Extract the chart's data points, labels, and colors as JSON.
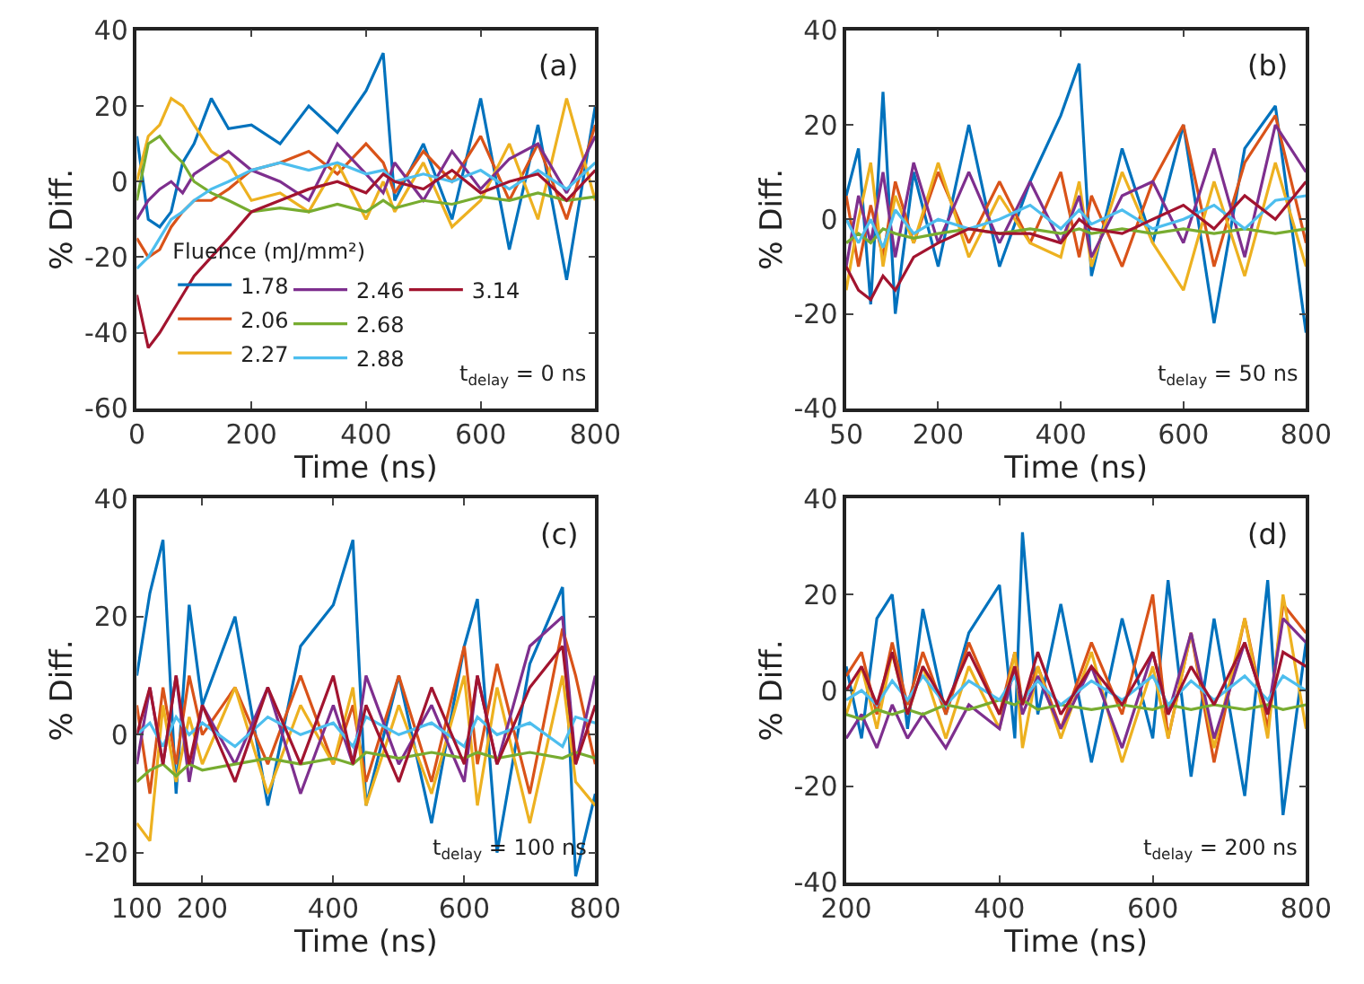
{
  "chart_data": [
    {
      "type": "line",
      "xlabel": "Time (ns)",
      "ylabel": "% Diff.",
      "xlim": [
        0,
        800
      ],
      "xticks": [
        0,
        200,
        400,
        600,
        800
      ],
      "ylim": [
        -60,
        40
      ],
      "yticks": [
        -60,
        -40,
        -20,
        0,
        20,
        40
      ],
      "legend": "bottom",
      "legend_title": "Fluence (mJ/mm²)",
      "annotations": [
        "(a)",
        "t$_{delay}$ = 0 ns"
      ],
      "x": [
        0,
        20,
        40,
        60,
        80,
        100,
        130,
        160,
        200,
        250,
        300,
        350,
        400,
        430,
        450,
        500,
        550,
        600,
        650,
        700,
        750,
        800
      ],
      "series": [
        {
          "name": "1.78",
          "color": "#0072bd",
          "values": [
            12,
            -10,
            -12,
            -8,
            5,
            10,
            22,
            14,
            15,
            10,
            20,
            13,
            24,
            34,
            -5,
            10,
            -10,
            22,
            -18,
            15,
            -26,
            20
          ]
        },
        {
          "name": "2.06",
          "color": "#d95319",
          "values": [
            -15,
            -20,
            -18,
            -12,
            -8,
            -5,
            -5,
            -2,
            3,
            5,
            8,
            2,
            10,
            5,
            -3,
            8,
            0,
            12,
            -5,
            10,
            -10,
            15
          ]
        },
        {
          "name": "2.27",
          "color": "#edb120",
          "values": [
            0,
            12,
            15,
            22,
            20,
            15,
            8,
            5,
            -5,
            -3,
            -8,
            5,
            -10,
            0,
            -8,
            5,
            -12,
            -5,
            10,
            -10,
            22,
            -5
          ]
        },
        {
          "name": "2.46",
          "color": "#7e2f8e",
          "values": [
            -10,
            -5,
            -2,
            0,
            -3,
            2,
            5,
            8,
            3,
            0,
            -5,
            10,
            2,
            -3,
            5,
            -5,
            8,
            -2,
            6,
            10,
            -3,
            12
          ]
        },
        {
          "name": "2.68",
          "color": "#77ac30",
          "values": [
            -5,
            10,
            12,
            8,
            5,
            0,
            -3,
            -5,
            -8,
            -7,
            -8,
            -6,
            -8,
            -5,
            -7,
            -5,
            -6,
            -4,
            -5,
            -3,
            -5,
            -4
          ]
        },
        {
          "name": "2.88",
          "color": "#4dbeee",
          "values": [
            -23,
            -20,
            -15,
            -10,
            -8,
            -5,
            -2,
            0,
            3,
            5,
            3,
            5,
            2,
            3,
            0,
            2,
            0,
            3,
            -2,
            3,
            -2,
            5
          ]
        },
        {
          "name": "3.14",
          "color": "#a2142f",
          "values": [
            -30,
            -44,
            -40,
            -35,
            -30,
            -25,
            -20,
            -15,
            -8,
            -5,
            -2,
            0,
            -3,
            2,
            0,
            -2,
            3,
            -3,
            0,
            2,
            -5,
            3
          ]
        }
      ]
    },
    {
      "type": "line",
      "xlabel": "Time (ns)",
      "ylabel": "% Diff.",
      "xlim": [
        50,
        800
      ],
      "xticks": [
        50,
        200,
        400,
        600,
        800
      ],
      "ylim": [
        -40,
        40
      ],
      "yticks": [
        -40,
        -20,
        0,
        20,
        40
      ],
      "annotations": [
        "(b)",
        "t$_{delay}$ = 50 ns"
      ],
      "x": [
        50,
        70,
        90,
        110,
        130,
        160,
        200,
        250,
        300,
        350,
        400,
        430,
        450,
        500,
        550,
        600,
        650,
        700,
        750,
        800
      ],
      "series": [
        {
          "color": "#0072bd",
          "values": [
            5,
            15,
            -18,
            27,
            -20,
            10,
            -10,
            20,
            -10,
            8,
            22,
            33,
            -12,
            15,
            -5,
            20,
            -22,
            15,
            24,
            -24
          ]
        },
        {
          "color": "#d95319",
          "values": [
            5,
            -10,
            3,
            -8,
            8,
            -5,
            10,
            -5,
            8,
            -5,
            10,
            -8,
            5,
            -10,
            8,
            20,
            -10,
            12,
            22,
            -5
          ]
        },
        {
          "color": "#edb120",
          "values": [
            -15,
            0,
            12,
            -10,
            5,
            -5,
            12,
            -8,
            5,
            -5,
            -8,
            8,
            -10,
            10,
            -5,
            -15,
            8,
            -12,
            12,
            -10
          ]
        },
        {
          "color": "#7e2f8e",
          "values": [
            -10,
            5,
            -5,
            10,
            -8,
            12,
            -5,
            10,
            -5,
            8,
            -5,
            5,
            -8,
            5,
            8,
            -5,
            15,
            -8,
            20,
            10
          ]
        },
        {
          "color": "#77ac30",
          "values": [
            -5,
            -3,
            -5,
            -2,
            -3,
            -4,
            -3,
            -2,
            -3,
            -2,
            -3,
            -2,
            -3,
            -2,
            -3,
            -2,
            -3,
            -2,
            -3,
            -2
          ]
        },
        {
          "color": "#4dbeee",
          "values": [
            0,
            -5,
            0,
            -6,
            2,
            -3,
            0,
            -2,
            0,
            3,
            -2,
            2,
            -1,
            2,
            -2,
            0,
            3,
            -2,
            4,
            5
          ]
        },
        {
          "color": "#a2142f",
          "values": [
            -10,
            -15,
            -17,
            -12,
            -15,
            -8,
            -5,
            -2,
            -3,
            -3,
            -5,
            0,
            -2,
            -3,
            0,
            3,
            -2,
            5,
            0,
            8
          ]
        }
      ]
    },
    {
      "type": "line",
      "xlabel": "Time (ns)",
      "ylabel": "% Diff.",
      "xlim": [
        100,
        800
      ],
      "xticks": [
        100,
        200,
        400,
        600,
        800
      ],
      "ylim": [
        -25,
        40
      ],
      "yticks": [
        -20,
        0,
        20,
        40
      ],
      "annotations": [
        "(c)",
        "t$_{delay}$ = 100 ns"
      ],
      "x": [
        100,
        120,
        140,
        160,
        180,
        200,
        250,
        300,
        350,
        400,
        430,
        450,
        500,
        550,
        600,
        620,
        650,
        700,
        750,
        770,
        800
      ],
      "series": [
        {
          "color": "#0072bd",
          "values": [
            10,
            24,
            33,
            -10,
            22,
            5,
            20,
            -12,
            15,
            22,
            33,
            -12,
            10,
            -15,
            15,
            23,
            -20,
            12,
            25,
            -24,
            -10
          ]
        },
        {
          "color": "#d95319",
          "values": [
            5,
            -10,
            8,
            -5,
            10,
            0,
            8,
            -5,
            10,
            -5,
            5,
            -8,
            10,
            -8,
            15,
            -5,
            12,
            -10,
            18,
            10,
            -5
          ]
        },
        {
          "color": "#edb120",
          "values": [
            -15,
            -18,
            5,
            -8,
            3,
            -5,
            8,
            -10,
            5,
            -5,
            8,
            -12,
            5,
            -10,
            10,
            -12,
            8,
            -15,
            10,
            -8,
            -12
          ]
        },
        {
          "color": "#7e2f8e",
          "values": [
            -5,
            8,
            -5,
            10,
            -8,
            5,
            -5,
            8,
            -10,
            5,
            -5,
            10,
            -5,
            5,
            -8,
            10,
            -5,
            15,
            20,
            -5,
            10
          ]
        },
        {
          "color": "#77ac30",
          "values": [
            -8,
            -6,
            -5,
            -7,
            -5,
            -6,
            -5,
            -4,
            -5,
            -4,
            -5,
            -3,
            -4,
            -3,
            -4,
            -3,
            -4,
            -3,
            -4,
            -3,
            -4
          ]
        },
        {
          "color": "#4dbeee",
          "values": [
            0,
            2,
            -2,
            3,
            0,
            2,
            -2,
            3,
            0,
            2,
            -2,
            3,
            0,
            2,
            -2,
            3,
            0,
            2,
            -2,
            3,
            2
          ]
        },
        {
          "color": "#a2142f",
          "values": [
            0,
            8,
            -5,
            10,
            -5,
            5,
            -8,
            8,
            -5,
            10,
            -5,
            5,
            -8,
            8,
            -5,
            10,
            -5,
            8,
            15,
            -5,
            5
          ]
        }
      ]
    },
    {
      "type": "line",
      "xlabel": "Time (ns)",
      "ylabel": "% Diff.",
      "xlim": [
        200,
        800
      ],
      "xticks": [
        200,
        400,
        600,
        800
      ],
      "ylim": [
        -40,
        40
      ],
      "yticks": [
        -40,
        -20,
        0,
        20,
        40
      ],
      "annotations": [
        "(d)",
        "t$_{delay}$ = 200 ns"
      ],
      "x": [
        200,
        220,
        240,
        260,
        280,
        300,
        330,
        360,
        400,
        420,
        430,
        450,
        480,
        520,
        560,
        600,
        620,
        650,
        680,
        720,
        750,
        770,
        800
      ],
      "series": [
        {
          "color": "#0072bd",
          "values": [
            5,
            -10,
            15,
            20,
            -8,
            17,
            -5,
            12,
            22,
            -10,
            33,
            -5,
            18,
            -15,
            15,
            -10,
            23,
            -18,
            15,
            -22,
            23,
            -26,
            10
          ]
        },
        {
          "color": "#d95319",
          "values": [
            3,
            8,
            -5,
            10,
            -3,
            8,
            -5,
            10,
            -5,
            8,
            -3,
            5,
            -8,
            10,
            -5,
            20,
            -10,
            12,
            -15,
            15,
            -8,
            18,
            12
          ]
        },
        {
          "color": "#edb120",
          "values": [
            -5,
            5,
            -8,
            8,
            -5,
            5,
            -10,
            5,
            -8,
            8,
            -12,
            5,
            -10,
            8,
            -15,
            5,
            -10,
            12,
            -12,
            15,
            -10,
            20,
            -8
          ]
        },
        {
          "color": "#7e2f8e",
          "values": [
            -10,
            -5,
            -12,
            -3,
            -10,
            -5,
            -12,
            -3,
            -8,
            5,
            -5,
            3,
            -8,
            5,
            -12,
            8,
            -5,
            12,
            -10,
            10,
            -5,
            15,
            10
          ]
        },
        {
          "color": "#77ac30",
          "values": [
            -5,
            -6,
            -4,
            -5,
            -4,
            -5,
            -3,
            -4,
            -2,
            -3,
            -2,
            -4,
            -3,
            -4,
            -3,
            -4,
            -3,
            -4,
            -3,
            -4,
            -3,
            -4,
            -3
          ]
        },
        {
          "color": "#4dbeee",
          "values": [
            -2,
            0,
            -3,
            2,
            -2,
            3,
            -3,
            2,
            -2,
            3,
            -2,
            2,
            -3,
            2,
            -2,
            3,
            -3,
            2,
            -2,
            3,
            -2,
            3,
            0
          ]
        },
        {
          "color": "#a2142f",
          "values": [
            0,
            5,
            -3,
            8,
            -5,
            5,
            -3,
            8,
            -5,
            5,
            -3,
            8,
            -5,
            5,
            -3,
            8,
            -5,
            5,
            -3,
            10,
            -5,
            8,
            5
          ]
        }
      ]
    }
  ]
}
